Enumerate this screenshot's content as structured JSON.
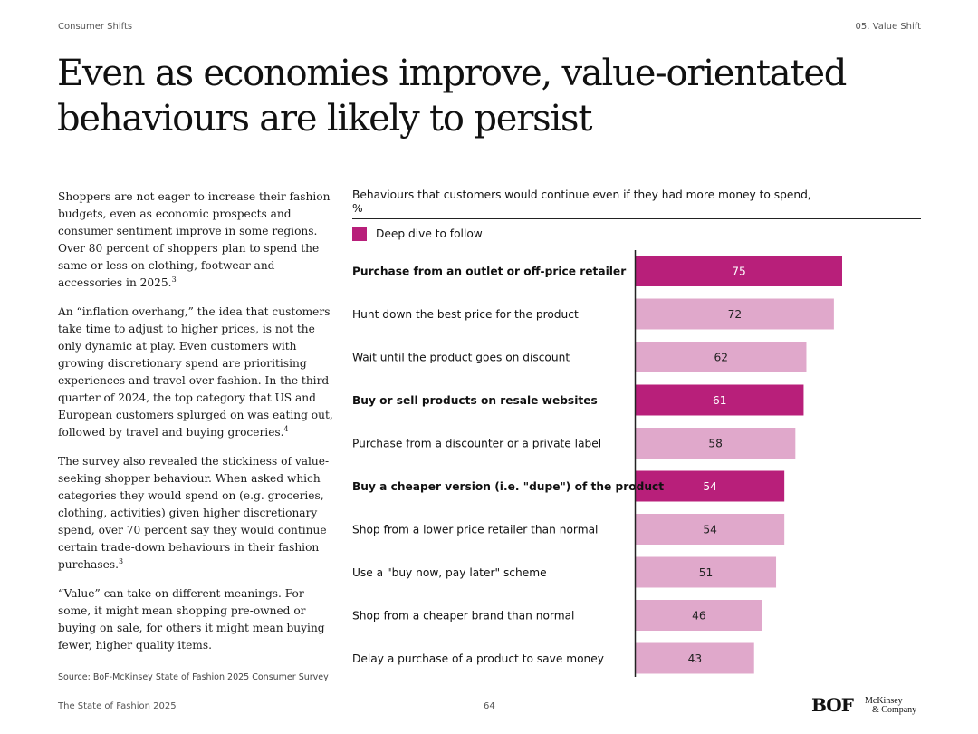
{
  "header": {
    "left": "Consumer Shifts",
    "right": "05. Value Shift"
  },
  "title": "Even as economies improve, value-orientated behaviours are likely to persist",
  "body": {
    "p1": "Shoppers are not eager to increase their fashion budgets, even as economic prospects and consumer sentiment improve in some regions. Over 80 percent of shoppers plan to spend the same or less on clothing, footwear and accessories in 2025.",
    "p1_sup": "3",
    "p2": "An “inflation overhang,” the idea that customers take time to adjust to higher prices, is not the only dynamic at play. Even customers with growing discretionary spend are prioritising experiences and travel over fashion. In the third quarter of 2024, the top category that US and European customers splurged on was eating out, followed by travel and buying groceries.",
    "p2_sup": "4",
    "p3": "The survey also revealed the stickiness of value-seeking shopper behaviour. When asked which categories they would spend on (e.g. groceries, clothing, activities) given higher discretionary spend, over 70 percent say they would continue certain trade-down behaviours in their fashion purchases.",
    "p3_sup": "3",
    "p4": "“Value” can take on different meanings. For some, it might mean shopping pre-owned or buying on sale, for others it might mean buying fewer, higher quality items."
  },
  "source": "Source: BoF-McKinsey State of Fashion 2025 Consumer Survey",
  "footer": {
    "left": "The State of Fashion 2025",
    "page": "64",
    "logo_bof": "BOF",
    "logo_mck_line1": "McKinsey",
    "logo_mck_line2": "& Company"
  },
  "colors": {
    "highlight": "#b81f7a",
    "normal": "#e0a8cb",
    "axis": "#222222"
  },
  "chart_data": {
    "type": "bar",
    "orientation": "horizontal",
    "title": "Behaviours that customers would continue even if they had more money to spend,",
    "unit": "%",
    "legend": {
      "label": "Deep dive to follow",
      "placement": "top-left"
    },
    "xlim": [
      0,
      100
    ],
    "categories": [
      "Purchase from an outlet or off-price retailer",
      "Hunt down the best price for the product",
      "Wait until the product goes on discount",
      "Buy or sell products on resale websites",
      "Purchase from a discounter or a private label",
      "Buy a cheaper version (i.e. \"dupe\") of the product",
      "Shop from a lower price retailer than normal",
      "Use a \"buy now, pay later\" scheme",
      "Shop from a cheaper brand than normal",
      "Delay a purchase of a product to save money"
    ],
    "values": [
      75,
      72,
      62,
      61,
      58,
      54,
      54,
      51,
      46,
      43
    ],
    "highlighted": [
      true,
      false,
      false,
      true,
      false,
      true,
      false,
      false,
      false,
      false
    ]
  }
}
